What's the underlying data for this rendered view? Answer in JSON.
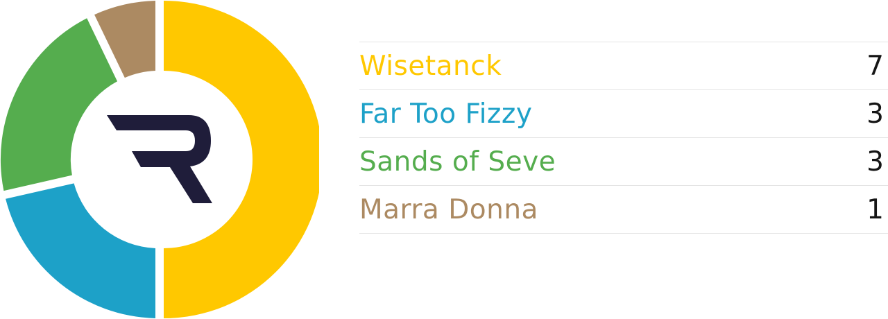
{
  "chart_data": {
    "type": "pie",
    "variant": "donut",
    "categories": [
      "Wisetanck",
      "Far Too Fizzy",
      "Sands of Seve",
      "Marra Donna"
    ],
    "values": [
      7,
      3,
      3,
      1
    ],
    "colors": [
      "#FFC800",
      "#1DA1C8",
      "#55AD4E",
      "#AC8A62"
    ],
    "legend_placement": "right",
    "center_logo": "R",
    "logo_color": "#1F1D3A"
  }
}
